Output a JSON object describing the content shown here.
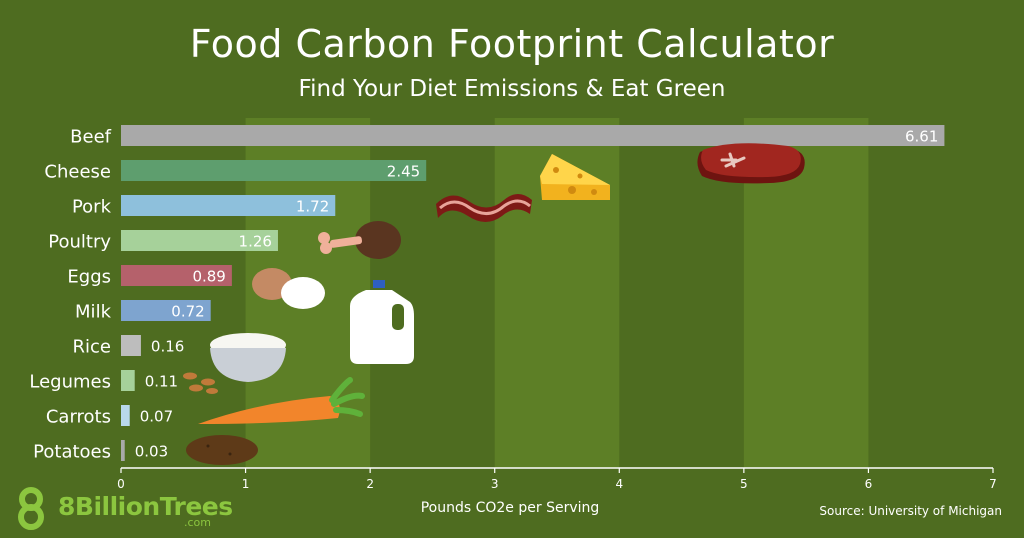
{
  "page": {
    "title": "Food Carbon Footprint Calculator",
    "subtitle": "Find Your Diet Emissions & Eat Green",
    "source": "Source: University of Michigan",
    "logo": {
      "brand": "8BillionTrees",
      "domain": ".com"
    }
  },
  "chart_data": {
    "type": "bar",
    "orientation": "horizontal",
    "title": "Food Carbon Footprint Calculator",
    "subtitle": "Find Your Diet Emissions & Eat Green",
    "xlabel": "Pounds CO2e per Serving",
    "ylabel": "",
    "xlim": [
      0,
      7
    ],
    "xticks": [
      0,
      1,
      2,
      3,
      4,
      5,
      6,
      7
    ],
    "grid": "alternating vertical bands",
    "categories": [
      "Beef",
      "Cheese",
      "Pork",
      "Poultry",
      "Eggs",
      "Milk",
      "Rice",
      "Legumes",
      "Carrots",
      "Potatoes"
    ],
    "values": [
      6.61,
      2.45,
      1.72,
      1.26,
      0.89,
      0.72,
      0.16,
      0.11,
      0.07,
      0.03
    ],
    "value_labels": [
      "6.61",
      "2.45",
      "1.72",
      "1.26",
      "0.89",
      "0.72",
      "0.16",
      "0.11",
      "0.07",
      "0.03"
    ],
    "bar_colors": [
      "#a9a9a9",
      "#5e9e6e",
      "#8ec0dc",
      "#a6d19a",
      "#b5616b",
      "#7ea4cf",
      "#bdbdbd",
      "#a6d19a",
      "#b8d8ec",
      "#a9a9a9"
    ],
    "colors": {
      "background": "#4e6c20",
      "band": "#5d7f26",
      "text": "#ffffff"
    }
  },
  "icons": [
    "steak-icon",
    "cheese-icon",
    "bacon-icon",
    "drumstick-icon",
    "eggs-icon",
    "milk-jug-icon",
    "rice-bowl-icon",
    "beans-icon",
    "carrot-icon",
    "potato-icon"
  ]
}
